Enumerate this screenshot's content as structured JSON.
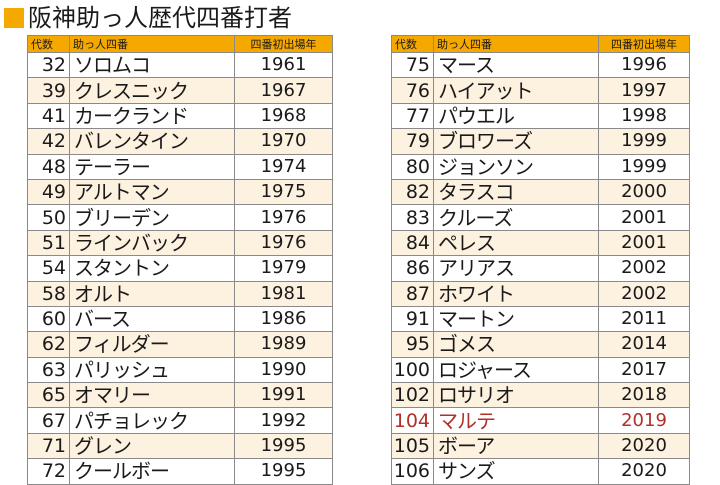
{
  "title": "阪神助っ人歴代四番打者",
  "colors": {
    "header": "#f5a800",
    "stripe": "#fdf1e0",
    "highlight": "#b0302a"
  },
  "headers": {
    "no": "代数",
    "name": "助っ人四番",
    "year": "四番初出場年"
  },
  "left": [
    {
      "no": "32",
      "name": "ソロムコ",
      "year": "1961"
    },
    {
      "no": "39",
      "name": "クレスニック",
      "year": "1967"
    },
    {
      "no": "41",
      "name": "カークランド",
      "year": "1968"
    },
    {
      "no": "42",
      "name": "バレンタイン",
      "year": "1970"
    },
    {
      "no": "48",
      "name": "テーラー",
      "year": "1974"
    },
    {
      "no": "49",
      "name": "アルトマン",
      "year": "1975"
    },
    {
      "no": "50",
      "name": "ブリーデン",
      "year": "1976"
    },
    {
      "no": "51",
      "name": "ラインバック",
      "year": "1976"
    },
    {
      "no": "54",
      "name": "スタントン",
      "year": "1979"
    },
    {
      "no": "58",
      "name": "オルト",
      "year": "1981"
    },
    {
      "no": "60",
      "name": "バース",
      "year": "1986"
    },
    {
      "no": "62",
      "name": "フィルダー",
      "year": "1989"
    },
    {
      "no": "63",
      "name": "パリッシュ",
      "year": "1990"
    },
    {
      "no": "65",
      "name": "オマリー",
      "year": "1991"
    },
    {
      "no": "67",
      "name": "パチョレック",
      "year": "1992"
    },
    {
      "no": "71",
      "name": "グレン",
      "year": "1995"
    },
    {
      "no": "72",
      "name": "クールボー",
      "year": "1995"
    }
  ],
  "right": [
    {
      "no": "75",
      "name": "マース",
      "year": "1996"
    },
    {
      "no": "76",
      "name": "ハイアット",
      "year": "1997"
    },
    {
      "no": "77",
      "name": "パウエル",
      "year": "1998"
    },
    {
      "no": "79",
      "name": "ブロワーズ",
      "year": "1999"
    },
    {
      "no": "80",
      "name": "ジョンソン",
      "year": "1999"
    },
    {
      "no": "82",
      "name": "タラスコ",
      "year": "2000"
    },
    {
      "no": "83",
      "name": "クルーズ",
      "year": "2001"
    },
    {
      "no": "84",
      "name": "ペレス",
      "year": "2001"
    },
    {
      "no": "86",
      "name": "アリアス",
      "year": "2002"
    },
    {
      "no": "87",
      "name": "ホワイト",
      "year": "2002"
    },
    {
      "no": "91",
      "name": "マートン",
      "year": "2011"
    },
    {
      "no": "95",
      "name": "ゴメス",
      "year": "2014"
    },
    {
      "no": "100",
      "name": "ロジャース",
      "year": "2017"
    },
    {
      "no": "102",
      "name": "ロサリオ",
      "year": "2018"
    },
    {
      "no": "104",
      "name": "マルテ",
      "year": "2019",
      "highlight": true
    },
    {
      "no": "105",
      "name": "ボーア",
      "year": "2020"
    },
    {
      "no": "106",
      "name": "サンズ",
      "year": "2020"
    }
  ]
}
